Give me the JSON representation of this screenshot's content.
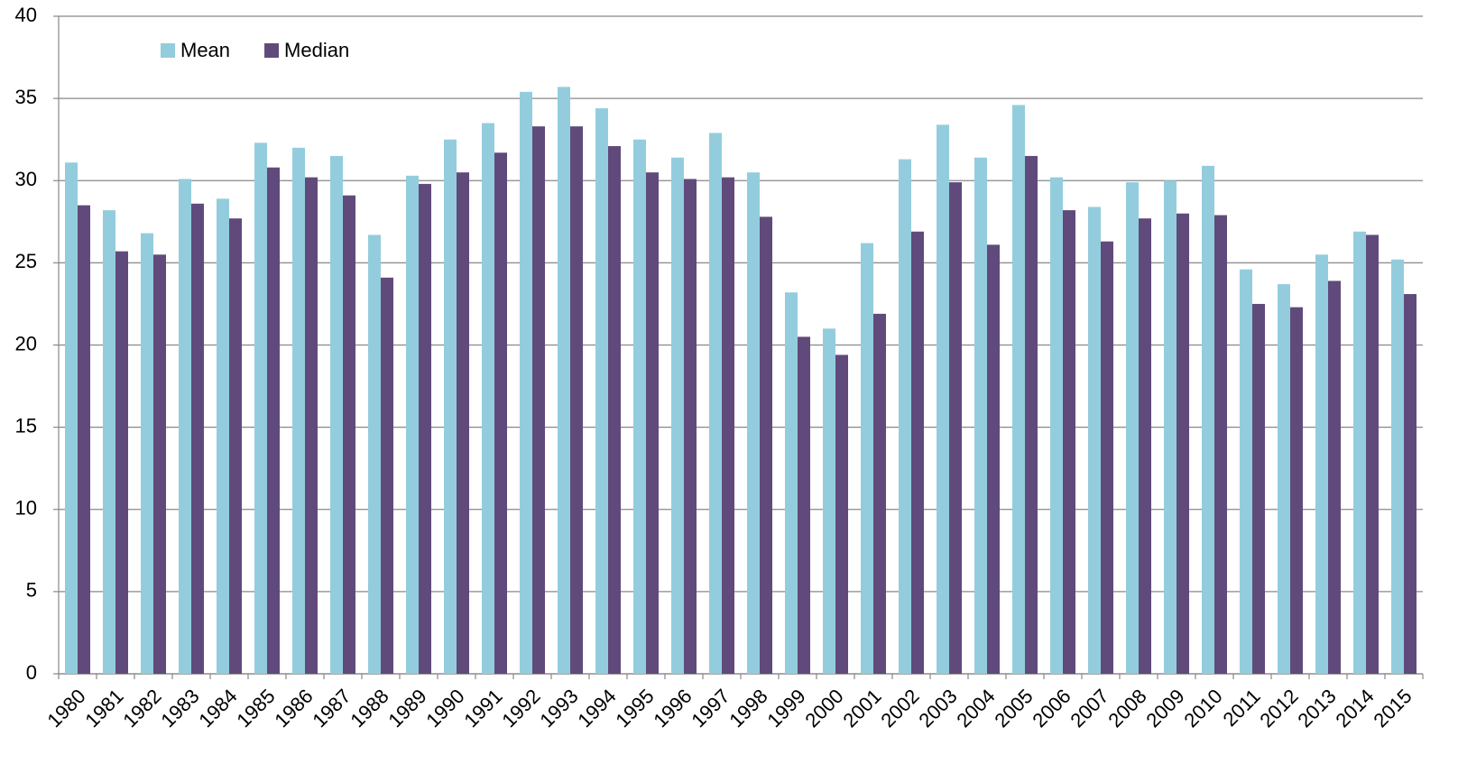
{
  "chart_data": {
    "type": "bar",
    "categories": [
      "1980",
      "1981",
      "1982",
      "1983",
      "1984",
      "1985",
      "1986",
      "1987",
      "1988",
      "1989",
      "1990",
      "1991",
      "1992",
      "1993",
      "1994",
      "1995",
      "1996",
      "1997",
      "1998",
      "1999",
      "2000",
      "2001",
      "2002",
      "2003",
      "2004",
      "2005",
      "2006",
      "2007",
      "2008",
      "2009",
      "2010",
      "2011",
      "2012",
      "2013",
      "2014",
      "2015"
    ],
    "series": [
      {
        "name": "Mean",
        "color": "#93cddd",
        "values": [
          31.1,
          28.2,
          26.8,
          30.1,
          28.9,
          32.3,
          32.0,
          31.5,
          26.7,
          30.3,
          32.5,
          33.5,
          35.4,
          35.7,
          34.4,
          32.5,
          31.4,
          32.9,
          30.5,
          23.2,
          21.0,
          26.2,
          31.3,
          33.4,
          31.4,
          34.6,
          30.2,
          28.4,
          29.9,
          30.0,
          30.9,
          24.6,
          23.7,
          25.5,
          26.9,
          25.2
        ]
      },
      {
        "name": "Median",
        "color": "#604a7b",
        "values": [
          28.5,
          25.7,
          25.5,
          28.6,
          27.7,
          30.8,
          30.2,
          29.1,
          24.1,
          29.8,
          30.5,
          31.7,
          33.3,
          33.3,
          32.1,
          30.5,
          30.1,
          30.2,
          27.8,
          20.5,
          19.4,
          21.9,
          26.9,
          29.9,
          26.1,
          31.5,
          28.2,
          26.3,
          27.7,
          28.0,
          27.9,
          22.5,
          22.3,
          23.9,
          26.7,
          23.1
        ]
      }
    ],
    "ylim": [
      0,
      40
    ],
    "yticks": [
      0,
      5,
      10,
      15,
      20,
      25,
      30,
      35,
      40
    ],
    "grid": true,
    "legend": "upper-left"
  }
}
